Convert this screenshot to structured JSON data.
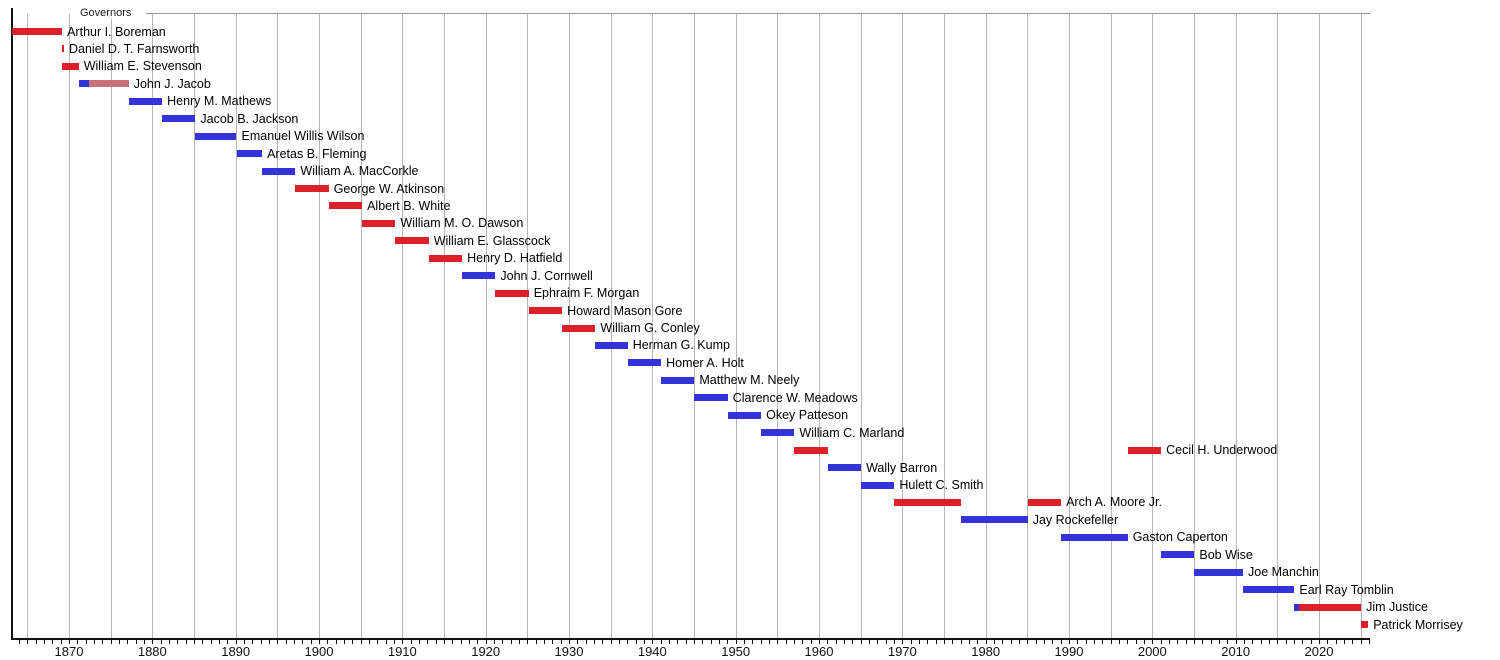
{
  "title": "Governors",
  "colors": {
    "republican": "#db2127",
    "democratic": "#3333d9",
    "independent": "#c8707e",
    "gridline": "#b6b6b6",
    "axis": "#111111",
    "topline": "#9a9a9a"
  },
  "axis": {
    "year_start": 1863.16,
    "year_end": 2026.1,
    "gridline_step": 5,
    "gridline_first": 1865,
    "gridline_last": 2025,
    "minor_tick_first": 1864,
    "minor_tick_last": 2026,
    "decade_labels": [
      "1870",
      "1880",
      "1890",
      "1900",
      "1910",
      "1920",
      "1930",
      "1940",
      "1950",
      "1960",
      "1970",
      "1980",
      "1990",
      "2000",
      "2010",
      "2020"
    ]
  },
  "chart_data": {
    "type": "bar",
    "variant": "timeline-gantt",
    "title": "Governors",
    "xlabel": "Year",
    "ylabel": "",
    "xlim": [
      1863.16,
      2026.1
    ],
    "grid": true,
    "legend_position": "none",
    "governors": [
      {
        "name": "Arthur I. Boreman",
        "terms": [
          {
            "start": 1863.17,
            "end": 1869.17,
            "party": "republican"
          }
        ]
      },
      {
        "name": "Daniel D. T. Farnsworth",
        "terms": [
          {
            "start": 1869.15,
            "end": 1869.4,
            "party": "republican"
          }
        ]
      },
      {
        "name": "William E. Stevenson",
        "terms": [
          {
            "start": 1869.17,
            "end": 1871.17,
            "party": "republican"
          }
        ]
      },
      {
        "name": "John J. Jacob",
        "terms": [
          {
            "start": 1871.17,
            "end": 1872.45,
            "party": "democratic"
          },
          {
            "start": 1872.45,
            "end": 1877.17,
            "party": "independent"
          }
        ]
      },
      {
        "name": "Henry M. Mathews",
        "terms": [
          {
            "start": 1877.17,
            "end": 1881.17,
            "party": "democratic"
          }
        ]
      },
      {
        "name": "Jacob B. Jackson",
        "terms": [
          {
            "start": 1881.17,
            "end": 1885.17,
            "party": "democratic"
          }
        ]
      },
      {
        "name": "Emanuel Willis Wilson",
        "terms": [
          {
            "start": 1885.17,
            "end": 1890.1,
            "party": "democratic"
          }
        ]
      },
      {
        "name": "Aretas B. Fleming",
        "terms": [
          {
            "start": 1890.1,
            "end": 1893.17,
            "party": "democratic"
          }
        ]
      },
      {
        "name": "William A. MacCorkle",
        "terms": [
          {
            "start": 1893.17,
            "end": 1897.17,
            "party": "democratic"
          }
        ]
      },
      {
        "name": "George W. Atkinson",
        "terms": [
          {
            "start": 1897.17,
            "end": 1901.17,
            "party": "republican"
          }
        ]
      },
      {
        "name": "Albert B. White",
        "terms": [
          {
            "start": 1901.17,
            "end": 1905.17,
            "party": "republican"
          }
        ]
      },
      {
        "name": "William M. O. Dawson",
        "terms": [
          {
            "start": 1905.17,
            "end": 1909.17,
            "party": "republican"
          }
        ]
      },
      {
        "name": "William E. Glasscock",
        "terms": [
          {
            "start": 1909.17,
            "end": 1913.17,
            "party": "republican"
          }
        ]
      },
      {
        "name": "Henry D. Hatfield",
        "terms": [
          {
            "start": 1913.17,
            "end": 1917.17,
            "party": "republican"
          }
        ]
      },
      {
        "name": "John J. Cornwell",
        "terms": [
          {
            "start": 1917.17,
            "end": 1921.17,
            "party": "democratic"
          }
        ]
      },
      {
        "name": "Ephraim F. Morgan",
        "terms": [
          {
            "start": 1921.17,
            "end": 1925.17,
            "party": "republican"
          }
        ]
      },
      {
        "name": "Howard Mason Gore",
        "terms": [
          {
            "start": 1925.17,
            "end": 1929.17,
            "party": "republican"
          }
        ]
      },
      {
        "name": "William G. Conley",
        "terms": [
          {
            "start": 1929.17,
            "end": 1933.17,
            "party": "republican"
          }
        ]
      },
      {
        "name": "Herman G. Kump",
        "terms": [
          {
            "start": 1933.17,
            "end": 1937.05,
            "party": "democratic"
          }
        ]
      },
      {
        "name": "Homer A. Holt",
        "terms": [
          {
            "start": 1937.05,
            "end": 1941.05,
            "party": "democratic"
          }
        ]
      },
      {
        "name": "Matthew M. Neely",
        "terms": [
          {
            "start": 1941.05,
            "end": 1945.05,
            "party": "democratic"
          }
        ]
      },
      {
        "name": "Clarence W. Meadows",
        "terms": [
          {
            "start": 1945.05,
            "end": 1949.05,
            "party": "democratic"
          }
        ]
      },
      {
        "name": "Okey Patteson",
        "terms": [
          {
            "start": 1949.05,
            "end": 1953.05,
            "party": "democratic"
          }
        ]
      },
      {
        "name": "William C. Marland",
        "terms": [
          {
            "start": 1953.05,
            "end": 1957.05,
            "party": "democratic"
          }
        ]
      },
      {
        "name": "Cecil H. Underwood",
        "terms": [
          {
            "start": 1957.05,
            "end": 1961.05,
            "party": "republican"
          },
          {
            "start": 1997.05,
            "end": 2001.05,
            "party": "republican"
          }
        ]
      },
      {
        "name": "Wally Barron",
        "terms": [
          {
            "start": 1961.05,
            "end": 1965.05,
            "party": "democratic"
          }
        ]
      },
      {
        "name": "Hulett C. Smith",
        "terms": [
          {
            "start": 1965.05,
            "end": 1969.05,
            "party": "democratic"
          }
        ]
      },
      {
        "name": "Arch A. Moore Jr.",
        "terms": [
          {
            "start": 1969.05,
            "end": 1977.05,
            "party": "republican"
          },
          {
            "start": 1985.05,
            "end": 1989.05,
            "party": "republican"
          }
        ]
      },
      {
        "name": "Jay Rockefeller",
        "terms": [
          {
            "start": 1977.05,
            "end": 1985.05,
            "party": "democratic"
          }
        ]
      },
      {
        "name": "Gaston Caperton",
        "terms": [
          {
            "start": 1989.05,
            "end": 1997.05,
            "party": "democratic"
          }
        ]
      },
      {
        "name": "Bob Wise",
        "terms": [
          {
            "start": 2001.05,
            "end": 2005.05,
            "party": "democratic"
          }
        ]
      },
      {
        "name": "Joe Manchin",
        "terms": [
          {
            "start": 2005.05,
            "end": 2010.88,
            "party": "democratic"
          }
        ]
      },
      {
        "name": "Earl Ray Tomblin",
        "terms": [
          {
            "start": 2010.88,
            "end": 2017.05,
            "party": "democratic"
          }
        ]
      },
      {
        "name": "Jim Justice",
        "terms": [
          {
            "start": 2017.05,
            "end": 2017.62,
            "party": "democratic"
          },
          {
            "start": 2017.62,
            "end": 2025.05,
            "party": "republican"
          }
        ]
      },
      {
        "name": "Patrick Morrisey",
        "terms": [
          {
            "start": 2025.05,
            "end": 2025.9,
            "party": "republican"
          }
        ]
      }
    ]
  }
}
